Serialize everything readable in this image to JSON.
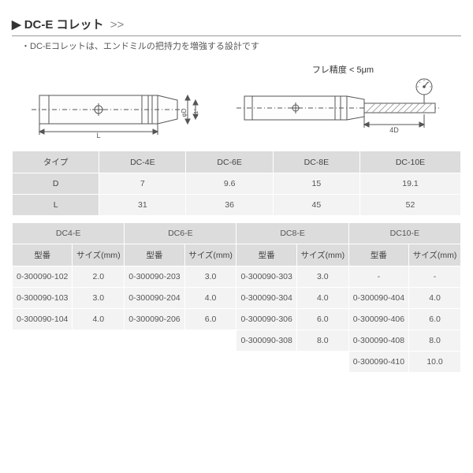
{
  "header": {
    "title_prefix": "▶",
    "title": "DC-E コレット",
    "arrows": ">>",
    "subtitle": "・DC-Eコレットは、エンドミルの把持力を増強する設計です"
  },
  "runout_label": "フレ精度 < 5μm",
  "spec_table": {
    "row_headers": [
      "タイプ",
      "D",
      "L"
    ],
    "columns": [
      "DC-4E",
      "DC-6E",
      "DC-8E",
      "DC-10E"
    ],
    "rows": [
      [
        "7",
        "9.6",
        "15",
        "19.1"
      ],
      [
        "31",
        "36",
        "45",
        "52"
      ]
    ]
  },
  "parts_table": {
    "group_headers": [
      "DC4-E",
      "DC6-E",
      "DC8-E",
      "DC10-E"
    ],
    "sub_headers": [
      "型番",
      "サイズ(mm)"
    ],
    "rows": [
      [
        "0-300090-102",
        "2.0",
        "0-300090-203",
        "3.0",
        "0-300090-303",
        "3.0",
        "-",
        "-"
      ],
      [
        "0-300090-103",
        "3.0",
        "0-300090-204",
        "4.0",
        "0-300090-304",
        "4.0",
        "0-300090-404",
        "4.0"
      ],
      [
        "0-300090-104",
        "4.0",
        "0-300090-206",
        "6.0",
        "0-300090-306",
        "6.0",
        "0-300090-406",
        "6.0"
      ],
      [
        "",
        "",
        "",
        "",
        "0-300090-308",
        "8.0",
        "0-300090-408",
        "8.0"
      ],
      [
        "",
        "",
        "",
        "",
        "",
        "",
        "0-300090-410",
        "10.0"
      ]
    ]
  },
  "styling": {
    "header_bg": "#dcdcdc",
    "body_bg": "#f3f3f3",
    "border_color": "#ffffff",
    "font_size_pt": 10.5,
    "stroke": "#555555",
    "hatch": "#888888"
  }
}
